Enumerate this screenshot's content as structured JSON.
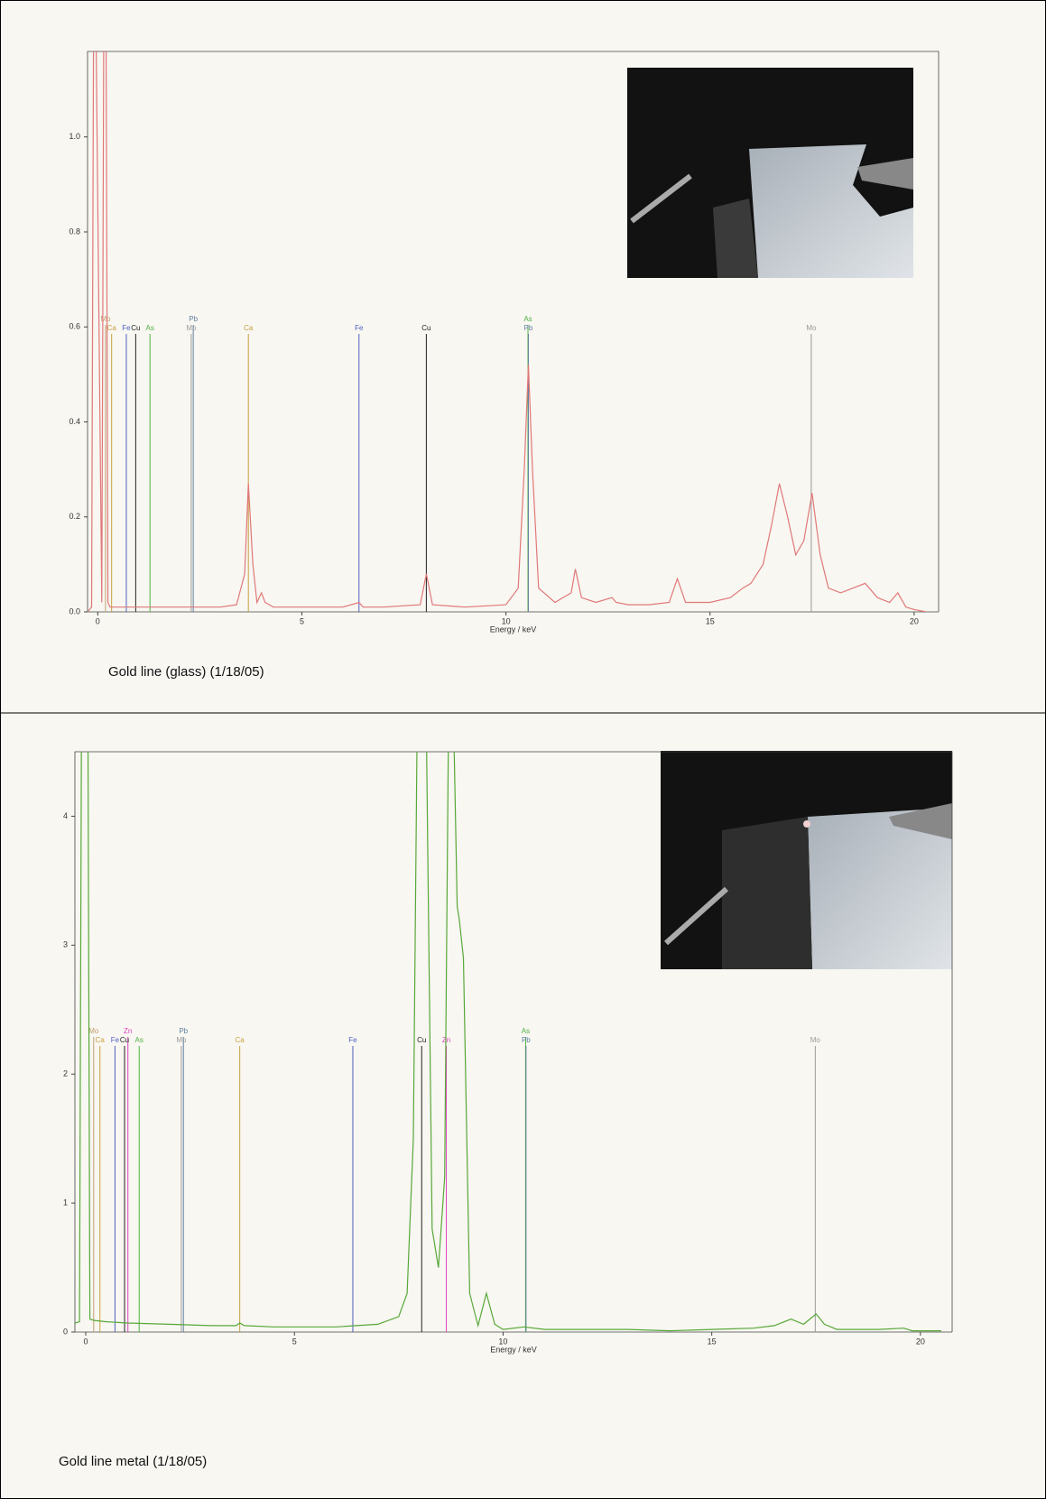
{
  "chart_data": [
    {
      "type": "line",
      "caption": "Gold line (glass) (1/18/05)",
      "xlabel": "Energy / keV",
      "xlim": [
        -0.25,
        20.6
      ],
      "ylim": [
        0,
        1.18
      ],
      "xticks": [
        0,
        5,
        10,
        15,
        20
      ],
      "yticks": [
        {
          "value": 0,
          "label": "0.0"
        },
        {
          "value": 0.2,
          "label": "0.2"
        },
        {
          "value": 0.4,
          "label": "0.4"
        },
        {
          "value": 0.6,
          "label": "0.6"
        },
        {
          "value": 0.8,
          "label": "0.8"
        },
        {
          "value": 1.0,
          "label": "1.0"
        }
      ],
      "x": [
        -0.25,
        -0.15,
        -0.1,
        -0.05,
        0.1,
        0.15,
        0.2,
        0.25,
        0.3,
        0.5,
        1,
        1.5,
        2,
        2.5,
        3,
        3.4,
        3.6,
        3.69,
        3.8,
        3.9,
        4.01,
        4.1,
        4.3,
        5,
        6,
        6.4,
        6.5,
        7,
        7.9,
        8.05,
        8.2,
        9,
        10,
        10.3,
        10.45,
        10.55,
        10.65,
        10.8,
        11.2,
        11.6,
        11.7,
        11.85,
        12.2,
        12.6,
        12.7,
        13,
        13.5,
        14,
        14.2,
        14.4,
        15,
        15.5,
        15.8,
        16,
        16.3,
        16.5,
        16.7,
        16.9,
        17.1,
        17.3,
        17.5,
        17.7,
        17.9,
        18.2,
        18.5,
        18.8,
        19.1,
        19.4,
        19.6,
        19.8,
        20,
        20.3
      ],
      "series": [
        {
          "color": "#e07878",
          "values": [
            0,
            0.01,
            1.3,
            1.3,
            0.02,
            1.3,
            1.3,
            0.02,
            0.01,
            0.01,
            0.01,
            0.01,
            0.01,
            0.01,
            0.01,
            0.015,
            0.08,
            0.27,
            0.1,
            0.02,
            0.04,
            0.02,
            0.01,
            0.01,
            0.01,
            0.02,
            0.01,
            0.01,
            0.015,
            0.08,
            0.015,
            0.01,
            0.015,
            0.05,
            0.3,
            0.52,
            0.3,
            0.05,
            0.02,
            0.04,
            0.09,
            0.03,
            0.02,
            0.03,
            0.02,
            0.015,
            0.015,
            0.02,
            0.07,
            0.02,
            0.02,
            0.03,
            0.05,
            0.06,
            0.1,
            0.18,
            0.27,
            0.2,
            0.12,
            0.15,
            0.25,
            0.12,
            0.05,
            0.04,
            0.05,
            0.06,
            0.03,
            0.02,
            0.04,
            0.01,
            0.005,
            0
          ]
        }
      ],
      "markers": [
        {
          "label": "Mo",
          "x": 0.19,
          "color": "#c0a070"
        },
        {
          "label": "Ca",
          "x": 0.34,
          "color": "#c8a040"
        },
        {
          "label": "Fe",
          "x": 0.7,
          "color": "#5060c0"
        },
        {
          "label": "Cu",
          "x": 0.93,
          "color": "#222222"
        },
        {
          "label": "As",
          "x": 1.28,
          "color": "#50b040"
        },
        {
          "label": "Pb",
          "x": 2.34,
          "color": "#6080a0"
        },
        {
          "label": "Mo",
          "x": 2.29,
          "color": "#9a9a9a"
        },
        {
          "label": "Ca",
          "x": 3.69,
          "color": "#c8a040"
        },
        {
          "label": "Fe",
          "x": 6.4,
          "color": "#5060c0"
        },
        {
          "label": "Cu",
          "x": 8.05,
          "color": "#222222"
        },
        {
          "label": "As",
          "x": 10.54,
          "color": "#50b040"
        },
        {
          "label": "Pb",
          "x": 10.55,
          "color": "#6080a0"
        },
        {
          "label": "Mo",
          "x": 17.48,
          "color": "#9a9a9a"
        }
      ]
    },
    {
      "type": "line",
      "caption": "Gold line metal (1/18/05)",
      "xlabel": "Energy / keV",
      "xlim": [
        -0.26,
        20.76
      ],
      "ylim": [
        0,
        4.5
      ],
      "xticks": [
        0,
        5,
        10,
        15,
        20
      ],
      "yticks": [
        0,
        1,
        2,
        3,
        4
      ],
      "x": [
        -0.26,
        -0.15,
        -0.1,
        0,
        0.05,
        0.1,
        0.2,
        0.5,
        1,
        2,
        3,
        3.6,
        3.69,
        3.8,
        4.5,
        5,
        6,
        7,
        7.5,
        7.7,
        7.85,
        7.95,
        8.05,
        8.15,
        8.3,
        8.45,
        8.6,
        8.7,
        8.8,
        8.9,
        8.95,
        9.05,
        9.2,
        9.4,
        9.6,
        9.8,
        10,
        10.5,
        11,
        12,
        13,
        14,
        15,
        16,
        16.5,
        16.9,
        17.2,
        17.5,
        17.7,
        18,
        19,
        19.6,
        19.8,
        20.5
      ],
      "series": [
        {
          "color": "#58a838",
          "values": [
            0.07,
            0.08,
            5,
            5,
            5,
            0.1,
            0.09,
            0.08,
            0.07,
            0.06,
            0.05,
            0.05,
            0.07,
            0.05,
            0.04,
            0.04,
            0.04,
            0.06,
            0.12,
            0.3,
            1.5,
            5,
            5,
            5,
            0.8,
            0.5,
            1.2,
            5,
            5,
            3.3,
            3.2,
            2.9,
            0.3,
            0.05,
            0.3,
            0.06,
            0.02,
            0.04,
            0.02,
            0.02,
            0.02,
            0.01,
            0.02,
            0.03,
            0.05,
            0.1,
            0.06,
            0.14,
            0.06,
            0.02,
            0.02,
            0.03,
            0.01,
            0.01
          ]
        }
      ],
      "markers": [
        {
          "label": "Mo",
          "x": 0.19,
          "color": "#c0a070"
        },
        {
          "label": "Ca",
          "x": 0.34,
          "color": "#c8a040"
        },
        {
          "label": "Fe",
          "x": 0.7,
          "color": "#5060c0"
        },
        {
          "label": "Zn",
          "x": 1.01,
          "color": "#e040c0"
        },
        {
          "label": "Cu",
          "x": 0.93,
          "color": "#222222"
        },
        {
          "label": "As",
          "x": 1.28,
          "color": "#50b040"
        },
        {
          "label": "Pb",
          "x": 2.34,
          "color": "#6080a0"
        },
        {
          "label": "Mo",
          "x": 2.29,
          "color": "#9a9a9a"
        },
        {
          "label": "Ca",
          "x": 3.69,
          "color": "#c8a040"
        },
        {
          "label": "Fe",
          "x": 6.4,
          "color": "#5060c0"
        },
        {
          "label": "Cu",
          "x": 8.05,
          "color": "#222222"
        },
        {
          "label": "Zn",
          "x": 8.64,
          "color": "#e040c0"
        },
        {
          "label": "As",
          "x": 10.54,
          "color": "#50b040"
        },
        {
          "label": "Pb",
          "x": 10.55,
          "color": "#6080a0"
        },
        {
          "label": "Mo",
          "x": 17.48,
          "color": "#9a9a9a"
        }
      ]
    }
  ]
}
